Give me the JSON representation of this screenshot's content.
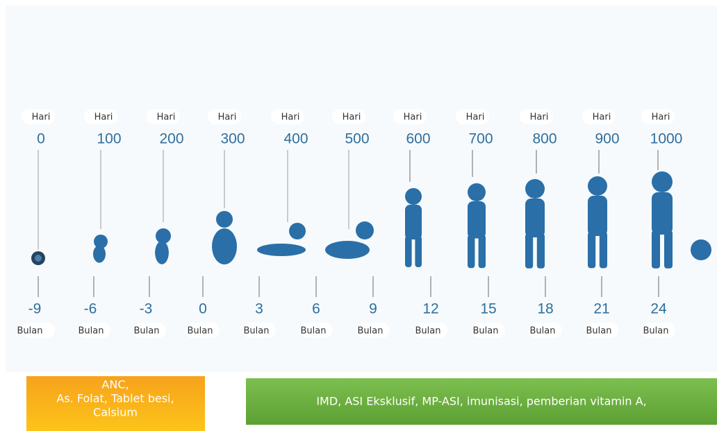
{
  "timeline": {
    "days": [
      {
        "unit": "Hari",
        "value": "0"
      },
      {
        "unit": "Hari",
        "value": "100"
      },
      {
        "unit": "Hari",
        "value": "200"
      },
      {
        "unit": "Hari",
        "value": "300"
      },
      {
        "unit": "Hari",
        "value": "400"
      },
      {
        "unit": "Hari",
        "value": "500"
      },
      {
        "unit": "Hari",
        "value": "600"
      },
      {
        "unit": "Hari",
        "value": "700"
      },
      {
        "unit": "Hari",
        "value": "800"
      },
      {
        "unit": "Hari",
        "value": "900"
      },
      {
        "unit": "Hari",
        "value": "1000"
      }
    ],
    "months": [
      {
        "value": "-9",
        "unit": "Bulan"
      },
      {
        "value": "-6",
        "unit": "Bulan"
      },
      {
        "value": "-3",
        "unit": "Bulan"
      },
      {
        "value": "0",
        "unit": "Bulan"
      },
      {
        "value": "3",
        "unit": "Bulan"
      },
      {
        "value": "6",
        "unit": "Bulan"
      },
      {
        "value": "9",
        "unit": "Bulan"
      },
      {
        "value": "12",
        "unit": "Bulan"
      },
      {
        "value": "15",
        "unit": "Bulan"
      },
      {
        "value": "18",
        "unit": "Bulan"
      },
      {
        "value": "21",
        "unit": "Bulan"
      },
      {
        "value": "24",
        "unit": "Bulan"
      }
    ]
  },
  "interventions": [
    {
      "lines": [
        "ANC,",
        "As. Folat, Tablet besi,",
        "Calsium"
      ]
    },
    {
      "lines": [
        "IMD, ASI Eksklusif, MP-ASI, imunisasi, pemberian vitamin A,"
      ]
    }
  ]
}
